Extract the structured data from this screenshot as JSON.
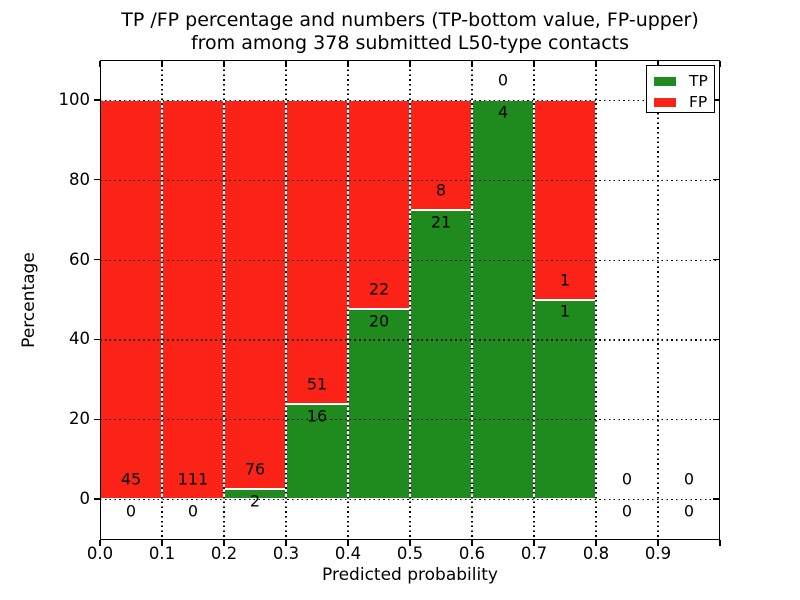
{
  "chart_data": {
    "type": "bar",
    "stacked": true,
    "units": "percent",
    "title": "TP /FP percentage and numbers (TP-bottom value, FP-upper) from among 378 submitted L50-type contacts",
    "title_lines": [
      "TP /FP percentage and numbers (TP-bottom value, FP-upper)",
      "from among 378 submitted L50-type contacts"
    ],
    "xlabel": "Predicted probability",
    "ylabel": "Percentage",
    "total_contacts": 378,
    "xlim": [
      0.0,
      1.0
    ],
    "ylim": [
      -10,
      110
    ],
    "xticks": [
      "0.0",
      "0.1",
      "0.2",
      "0.3",
      "0.4",
      "0.5",
      "0.6",
      "0.7",
      "0.8",
      "0.9"
    ],
    "yticks": [
      0,
      20,
      40,
      60,
      80,
      100
    ],
    "grid": "dotted-black-both-axes",
    "legend": {
      "position": "upper-right",
      "entries": [
        {
          "label": "TP",
          "color": "#1f8b1f"
        },
        {
          "label": "FP",
          "color": "#fb2318"
        }
      ]
    },
    "bins": [
      {
        "x_start": 0.0,
        "x_end": 0.1,
        "tp_count": 0,
        "fp_count": 45,
        "tp_pct": 0.0,
        "fp_pct": 100.0
      },
      {
        "x_start": 0.1,
        "x_end": 0.2,
        "tp_count": 0,
        "fp_count": 111,
        "tp_pct": 0.0,
        "fp_pct": 100.0
      },
      {
        "x_start": 0.2,
        "x_end": 0.3,
        "tp_count": 2,
        "fp_count": 76,
        "tp_pct": 2.6,
        "fp_pct": 97.4
      },
      {
        "x_start": 0.3,
        "x_end": 0.4,
        "tp_count": 16,
        "fp_count": 51,
        "tp_pct": 23.9,
        "fp_pct": 76.1
      },
      {
        "x_start": 0.4,
        "x_end": 0.5,
        "tp_count": 20,
        "fp_count": 22,
        "tp_pct": 47.6,
        "fp_pct": 52.4
      },
      {
        "x_start": 0.5,
        "x_end": 0.6,
        "tp_count": 21,
        "fp_count": 8,
        "tp_pct": 72.4,
        "fp_pct": 27.6
      },
      {
        "x_start": 0.6,
        "x_end": 0.7,
        "tp_count": 4,
        "fp_count": 0,
        "tp_pct": 100.0,
        "fp_pct": 0.0
      },
      {
        "x_start": 0.7,
        "x_end": 0.8,
        "tp_count": 1,
        "fp_count": 1,
        "tp_pct": 50.0,
        "fp_pct": 50.0
      },
      {
        "x_start": 0.8,
        "x_end": 0.9,
        "tp_count": 0,
        "fp_count": 0,
        "tp_pct": 0.0,
        "fp_pct": 0.0
      },
      {
        "x_start": 0.9,
        "x_end": 1.0,
        "tp_count": 0,
        "fp_count": 0,
        "tp_pct": 0.0,
        "fp_pct": 0.0
      }
    ],
    "colors": {
      "tp": "#1f8b1f",
      "fp": "#fb2318",
      "bar_edge": "#ffffff",
      "grid": "#000000",
      "spine": "#000000",
      "text": "#000000",
      "background": "#ffffff"
    }
  }
}
